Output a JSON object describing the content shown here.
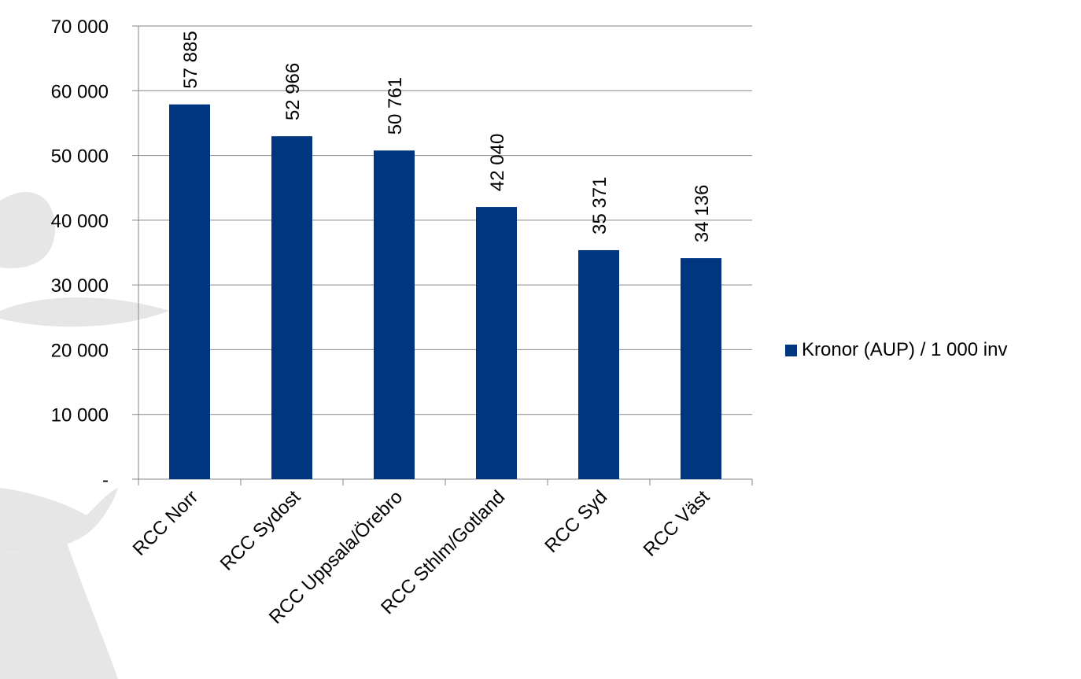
{
  "chart_data": {
    "type": "bar",
    "categories": [
      "RCC Norr",
      "RCC Sydost",
      "RCC Uppsala/Örebro",
      "RCC Sthlm/Gotland",
      "RCC Syd",
      "RCC Väst"
    ],
    "series": [
      {
        "name": "Kronor (AUP) / 1 000 inv",
        "values": [
          57885,
          52966,
          50761,
          42040,
          35371,
          34136
        ],
        "value_labels": [
          "57 885",
          "52 966",
          "50 761",
          "42 040",
          "35 371",
          "34 136"
        ],
        "color": "#003580"
      }
    ],
    "y_ticks": [
      "-",
      "10 000",
      "20 000",
      "30 000",
      "40 000",
      "50 000",
      "60 000",
      "70 000"
    ],
    "ylim": [
      0,
      70000
    ],
    "grid": true,
    "legend_position": "right",
    "title": "",
    "xlabel": "",
    "ylabel": ""
  },
  "colors": {
    "bar": "#003580",
    "grid": "#868686",
    "watermark": "#dedede"
  }
}
